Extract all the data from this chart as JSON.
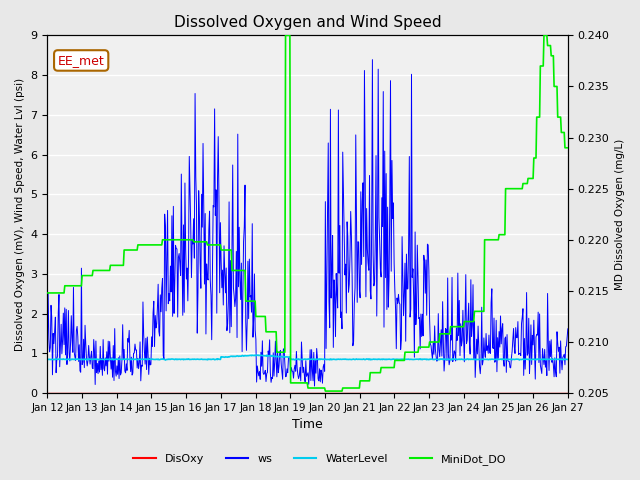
{
  "title": "Dissolved Oxygen and Wind Speed",
  "xlabel": "Time",
  "ylabel_left": "Dissolved Oxygen (mV), Wind Speed, Water Lvl (psi)",
  "ylabel_right": "MD Dissolved Oxygen (mg/L)",
  "annotation": "EE_met",
  "ylim_left": [
    0.0,
    9.0
  ],
  "ylim_right": [
    0.205,
    0.24
  ],
  "xtick_labels": [
    "Jan 12",
    "Jan 13",
    "Jan 14",
    "Jan 15",
    "Jan 16",
    "Jan 17",
    "Jan 18",
    "Jan 19",
    "Jan 20",
    "Jan 21",
    "Jan 22",
    "Jan 23",
    "Jan 24",
    "Jan 25",
    "Jan 26",
    "Jan 27"
  ],
  "colors": {
    "DisOxy": "#ff0000",
    "ws": "#0000ff",
    "WaterLevel": "#00ccee",
    "MiniDot_DO": "#00ee00"
  },
  "background_color": "#e8e8e8",
  "plot_bg_color": "#f0f0f0"
}
